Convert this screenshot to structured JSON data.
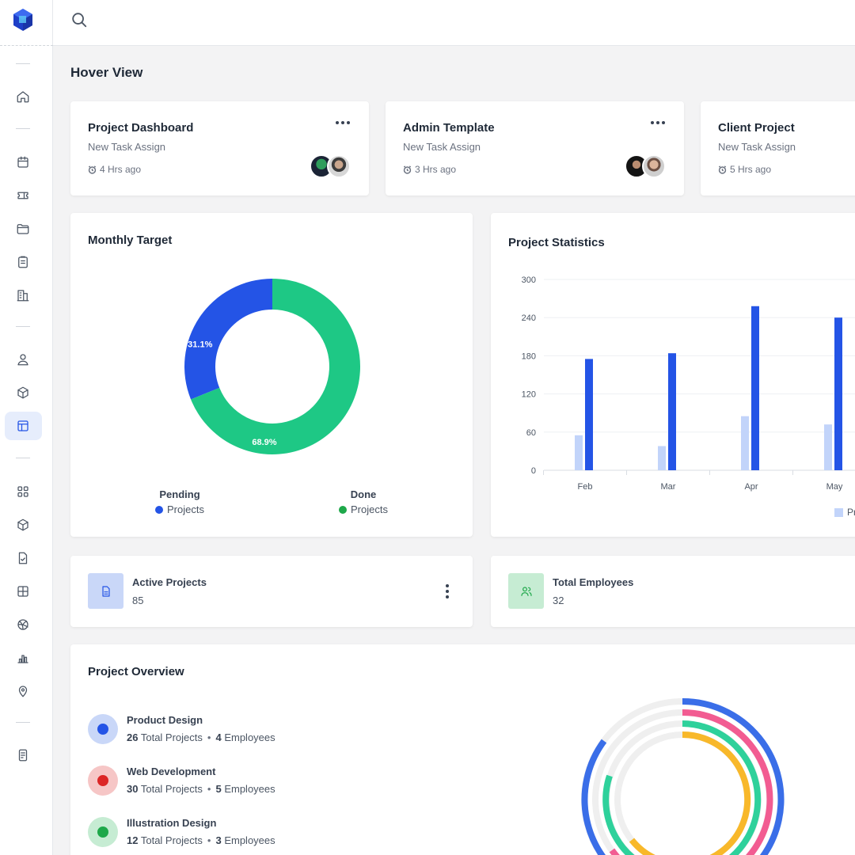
{
  "page_title": "Hover View",
  "colors": {
    "blue": "#2454e6",
    "green": "#1ec885",
    "light_blue": "#c2d4fa",
    "pink": "#f25c92",
    "yellow": "#f8b82a",
    "teal": "#2ed19b",
    "track": "#efefef"
  },
  "icons": {
    "sidebar": [
      "home-icon",
      "calendar-icon",
      "ticket-icon",
      "folder-icon",
      "clipboard-icon",
      "building-icon",
      "user-icon",
      "box-icon",
      "layout-icon",
      "grid-icon",
      "package-icon",
      "file-check-icon",
      "table-icon",
      "basketball-icon",
      "bar-chart-icon",
      "map-pin-icon",
      "document-icon"
    ]
  },
  "tasks": [
    {
      "title": "Project Dashboard",
      "subtitle": "New Task Assign",
      "time": "4 Hrs ago"
    },
    {
      "title": "Admin Template",
      "subtitle": "New Task Assign",
      "time": "3 Hrs ago"
    },
    {
      "title": "Client Project",
      "subtitle": "New Task Assign",
      "time": "5 Hrs ago"
    }
  ],
  "monthly_target": {
    "title": "Monthly Target",
    "legend": [
      {
        "label": "Pending",
        "sub": "Projects",
        "color": "#2454e6"
      },
      {
        "label": "Done",
        "sub": "Projects",
        "color": "#1ea84a"
      }
    ]
  },
  "project_statistics": {
    "title": "Project Statistics",
    "legend_fragment": "Pr"
  },
  "stats": [
    {
      "label": "Active Projects",
      "value": "85"
    },
    {
      "label": "Total Employees",
      "value": "32"
    }
  ],
  "overview": {
    "title": "Project Overview",
    "items": [
      {
        "name": "Product Design",
        "projects": "26",
        "projects_label": "Total Projects",
        "employees": "4",
        "employees_label": "Employees",
        "color": "#2454e6",
        "bg": "#c9d7f8"
      },
      {
        "name": "Web Development",
        "projects": "30",
        "projects_label": "Total Projects",
        "employees": "5",
        "employees_label": "Employees",
        "color": "#dc2626",
        "bg": "#f6c6c6"
      },
      {
        "name": "Illustration Design",
        "projects": "12",
        "projects_label": "Total Projects",
        "employees": "3",
        "employees_label": "Employees",
        "color": "#1ea84a",
        "bg": "#c6ecd3"
      }
    ]
  },
  "chart_data": [
    {
      "type": "pie",
      "title": "Monthly Target",
      "labels": [
        "Pending",
        "Done"
      ],
      "values": [
        31.1,
        68.9
      ],
      "value_labels": [
        "31.1%",
        "68.9%"
      ],
      "colors": [
        "#2454e6",
        "#1ec885"
      ]
    },
    {
      "type": "bar",
      "title": "Project Statistics",
      "categories": [
        "Feb",
        "Mar",
        "Apr",
        "May"
      ],
      "series": [
        {
          "values": [
            55,
            38,
            85,
            72
          ],
          "color": "#c2d4fa"
        },
        {
          "values": [
            175,
            184,
            258,
            240
          ],
          "color": "#2454e6"
        }
      ],
      "ylim": [
        0,
        300
      ],
      "yticks": [
        "0",
        "60",
        "120",
        "180",
        "240",
        "300"
      ],
      "grid": true
    }
  ]
}
